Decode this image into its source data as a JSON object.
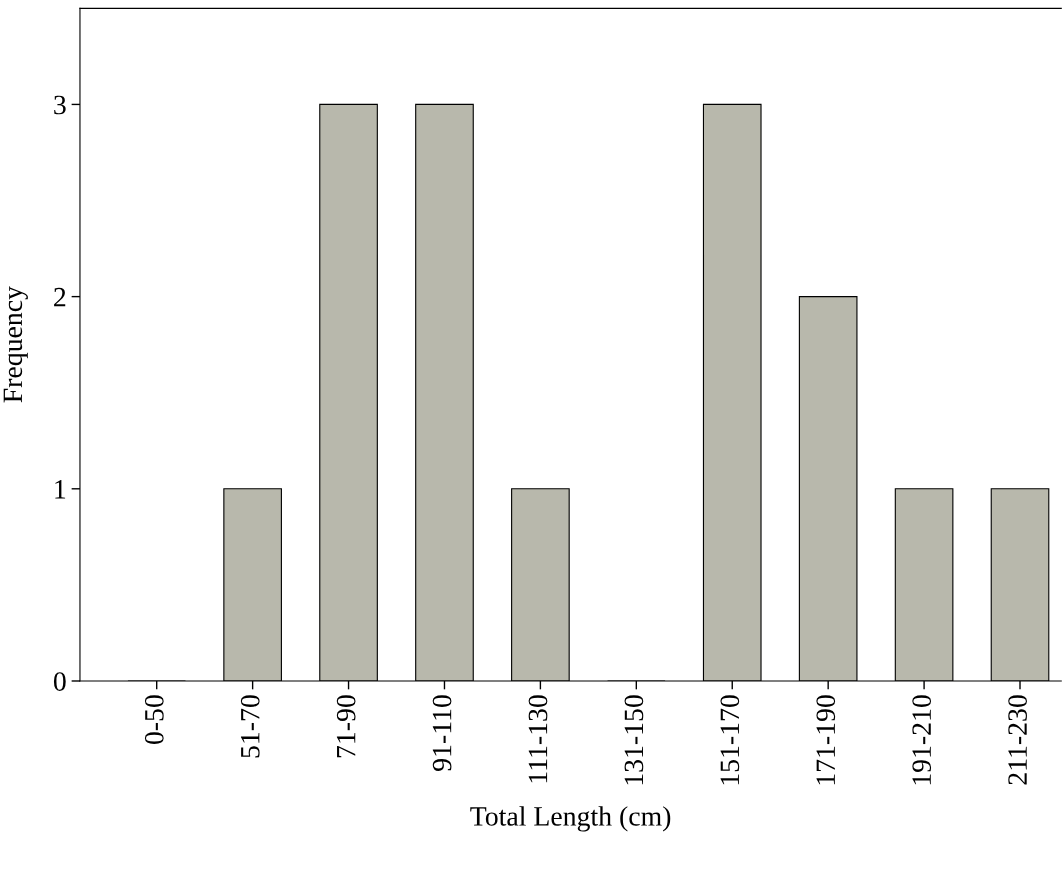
{
  "chart_data": {
    "type": "bar",
    "xlabel": "Total Length (cm)",
    "ylabel": "Frequency",
    "categories": [
      "0-50",
      "51-70",
      "71-90",
      "91-110",
      "111-130",
      "131-150",
      "151-170",
      "171-190",
      "191-210",
      "211-230"
    ],
    "values": [
      0,
      1,
      3,
      3,
      1,
      0,
      3,
      2,
      1,
      1
    ],
    "color": "#b8b8ac",
    "ylim": [
      0,
      3.5
    ],
    "yticks": [
      0,
      1,
      2,
      3
    ],
    "grid": false,
    "legend": false
  }
}
